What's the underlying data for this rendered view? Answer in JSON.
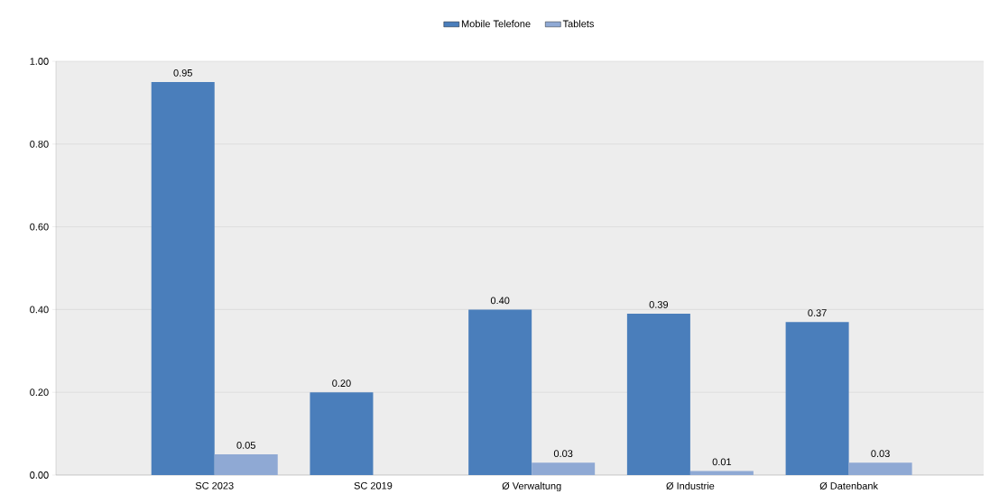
{
  "chart_data": {
    "type": "bar",
    "categories": [
      "SC 2023",
      "SC 2019",
      "Ø Verwaltung",
      "Ø Industrie",
      "Ø Datenbank"
    ],
    "series": [
      {
        "name": "Mobile Telefone",
        "color": "#4a7ebb",
        "values": [
          0.95,
          0.2,
          0.4,
          0.39,
          0.37
        ],
        "value_labels": [
          "0.95",
          "0.20",
          "0.40",
          "0.39",
          "0.37"
        ]
      },
      {
        "name": "Tablets",
        "color": "#8fa9d4",
        "values": [
          0.05,
          null,
          0.03,
          0.01,
          0.03
        ],
        "value_labels": [
          "0.05",
          null,
          "0.03",
          "0.01",
          "0.03"
        ]
      }
    ],
    "ylim": [
      0,
      1
    ],
    "yticks": [
      {
        "value": 0,
        "label": "0.00"
      },
      {
        "value": 0.2,
        "label": "0.20"
      },
      {
        "value": 0.4,
        "label": "0.40"
      },
      {
        "value": 0.6,
        "label": "0.60"
      },
      {
        "value": 0.8,
        "label": "0.80"
      },
      {
        "value": 1,
        "label": "1.00"
      }
    ],
    "grid": "y",
    "legend": "top"
  }
}
